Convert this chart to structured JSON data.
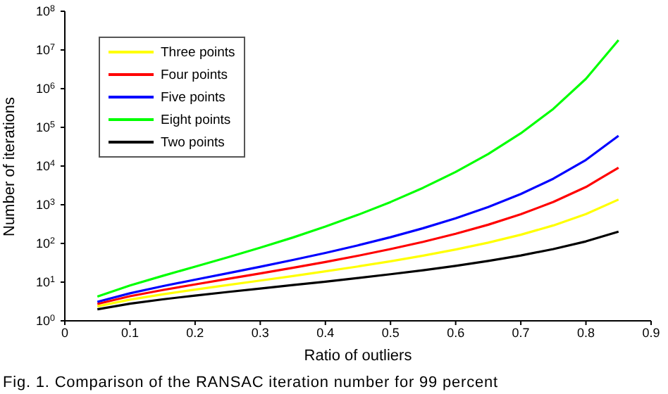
{
  "chart_data": {
    "type": "line",
    "xlabel": "Ratio of outliers",
    "ylabel": "Number of iterations",
    "annotations": [
      "Fig. 1. Comparison of the RANSAC iteration number for 99 percent"
    ],
    "x": [
      0.05,
      0.1,
      0.15,
      0.2,
      0.25,
      0.3,
      0.35,
      0.4,
      0.45,
      0.5,
      0.55,
      0.6,
      0.65,
      0.7,
      0.75,
      0.8,
      0.85
    ],
    "series": [
      {
        "name": "Three points",
        "color": "#ffff00",
        "values": [
          2.37,
          3.53,
          4.84,
          6.42,
          8.4,
          11.0,
          14.3,
          19.0,
          25.4,
          34.5,
          48.2,
          69.7,
          105,
          168,
          292,
          573,
          1362
        ]
      },
      {
        "name": "Four points",
        "color": "#ff0000",
        "values": [
          2.73,
          4.32,
          6.24,
          8.74,
          12.1,
          16.8,
          23.4,
          33.2,
          48.0,
          71.4,
          110,
          178,
          305,
          566,
          1180,
          2876,
          9100
        ]
      },
      {
        "name": "Five points",
        "color": "#0000ff",
        "values": [
          3.1,
          5.15,
          7.85,
          11.6,
          17.0,
          25.0,
          37.3,
          56.9,
          89.2,
          145,
          247,
          448,
          876,
          1893,
          4713,
          14390,
          60670
        ]
      },
      {
        "name": "Eight points",
        "color": "#00ff00",
        "values": [
          4.23,
          8.18,
          14.5,
          25.1,
          43.6,
          77.7,
          142,
          272,
          548,
          1175,
          2741,
          7031,
          20470,
          70200,
          301000,
          1799000,
          17990000
        ]
      },
      {
        "name": "Two points",
        "color": "#000000",
        "values": [
          1.98,
          2.77,
          3.59,
          4.5,
          5.57,
          6.84,
          8.39,
          10.3,
          12.8,
          16.0,
          20.3,
          26.4,
          35.2,
          48.8,
          71.4,
          113,
          202
        ]
      }
    ],
    "xlim": [
      0,
      0.9
    ],
    "xticks": [
      0,
      0.1,
      0.2,
      0.3,
      0.4,
      0.5,
      0.6,
      0.7,
      0.8,
      0.9
    ],
    "ylim": [
      1,
      100000000
    ],
    "yticks": [
      {
        "value": 1,
        "label": "10$^{0}$"
      },
      {
        "value": 10,
        "label": "10$^{1}$"
      },
      {
        "value": 100,
        "label": "10$^{2}$"
      },
      {
        "value": 1000,
        "label": "10$^{3}$"
      },
      {
        "value": 10000,
        "label": "10$^{4}$"
      },
      {
        "value": 100000,
        "label": "10$^{5}$"
      },
      {
        "value": 1000000,
        "label": "10$^{6}$"
      },
      {
        "value": 10000000,
        "label": "10$^{7}$"
      },
      {
        "value": 100000000,
        "label": "10$^{8}$"
      }
    ],
    "log": "y",
    "grid": false,
    "legend": "top left",
    "marker": "none",
    "line_style": "solid"
  }
}
